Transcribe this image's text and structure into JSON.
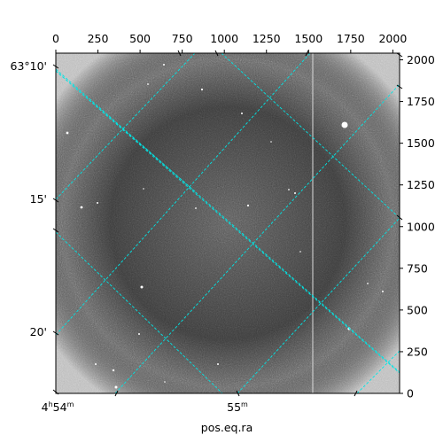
{
  "chart_data": {
    "type": "image",
    "xlabel": "pos.eq.ra",
    "ylabel": "",
    "pixel_axis_top": {
      "ticks": [
        "0",
        "250",
        "500",
        "750",
        "1000",
        "1250",
        "1500",
        "1750",
        "2000"
      ],
      "lim": [
        0,
        2040
      ]
    },
    "pixel_axis_right": {
      "ticks": [
        "0",
        "250",
        "500",
        "750",
        "1000",
        "1250",
        "1500",
        "1750",
        "2000"
      ],
      "lim": [
        0,
        2040
      ]
    },
    "ra_ticks": [
      {
        "label_h": "4",
        "label_m": "54",
        "has_sup": true
      },
      {
        "label_h": "",
        "label_m": "55",
        "has_sup": true
      }
    ],
    "dec_ticks": [
      "63°10'",
      "15'",
      "20'"
    ],
    "grid_color": "#00e5e5",
    "grid": true
  }
}
